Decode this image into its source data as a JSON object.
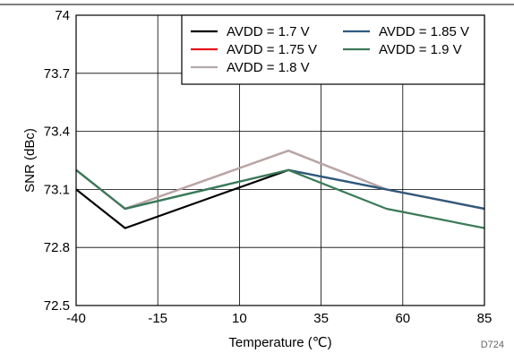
{
  "chart_data": {
    "type": "line",
    "title": "",
    "xlabel": "Temperature (℃)",
    "ylabel": "SNR (dBc)",
    "code": "D724",
    "xlim": [
      -40,
      85
    ],
    "ylim": [
      72.5,
      74
    ],
    "xticks": [
      "-40",
      "-15",
      "10",
      "35",
      "60",
      "85"
    ],
    "xtick_values": [
      -40,
      -15,
      10,
      35,
      60,
      85
    ],
    "yticks": [
      "72.5",
      "72.8",
      "73.1",
      "73.4",
      "73.7",
      "74"
    ],
    "ytick_values": [
      72.5,
      72.8,
      73.1,
      73.4,
      73.7,
      74
    ],
    "grid": true,
    "legend_position": "top-right",
    "x": [
      -40,
      -25,
      25,
      55,
      85
    ],
    "series": [
      {
        "name": "AVDD = 1.7 V",
        "color": "#000000",
        "values": [
          73.1,
          72.9,
          73.2,
          73.1,
          73.0
        ]
      },
      {
        "name": "AVDD = 1.75 V",
        "color": "#e8141b",
        "values": [
          73.2,
          73.0,
          73.3,
          73.1,
          73.0
        ]
      },
      {
        "name": "AVDD = 1.8 V",
        "color": "#b3a9a9",
        "values": [
          73.2,
          73.0,
          73.3,
          73.1,
          73.0
        ]
      },
      {
        "name": "AVDD = 1.85 V",
        "color": "#2c5a7f",
        "values": [
          73.2,
          73.0,
          73.2,
          73.1,
          73.0
        ]
      },
      {
        "name": "AVDD = 1.9 V",
        "color": "#3a7a57",
        "values": [
          73.2,
          73.0,
          73.2,
          73.0,
          72.9
        ]
      }
    ],
    "legend_layout": [
      {
        "series": 0,
        "row": 0,
        "col": 0
      },
      {
        "series": 3,
        "row": 0,
        "col": 1
      },
      {
        "series": 1,
        "row": 1,
        "col": 0
      },
      {
        "series": 4,
        "row": 1,
        "col": 1
      },
      {
        "series": 2,
        "row": 2,
        "col": 0
      }
    ]
  }
}
